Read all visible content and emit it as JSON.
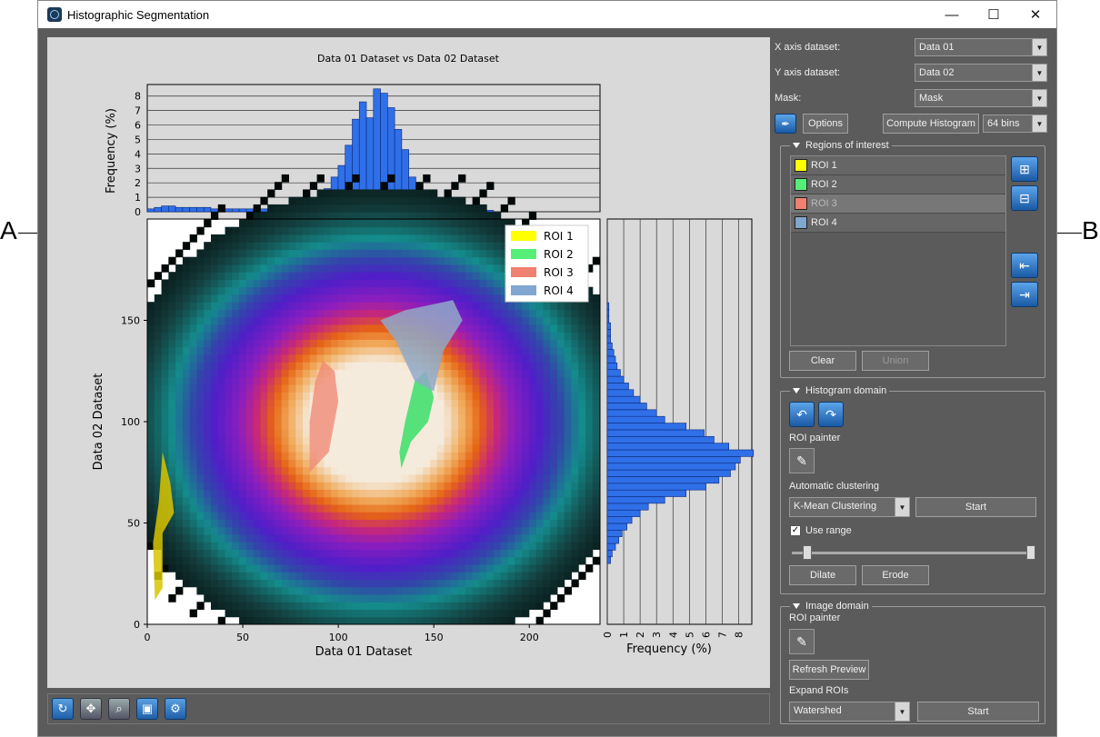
{
  "callouts": {
    "left": "A",
    "right": "B"
  },
  "window": {
    "title": "Histographic Segmentation",
    "minimize": "—",
    "maximize": "☐",
    "close": "✕"
  },
  "plot": {
    "title": "Data 01 Dataset vs Data 02 Dataset",
    "top_hist": {
      "ylabel": "Frequency (%)",
      "yticks": [
        "0",
        "1",
        "2",
        "3",
        "4",
        "5",
        "6",
        "7",
        "8"
      ]
    },
    "right_hist": {
      "xlabel": "Frequency (%)",
      "xticks": [
        "0",
        "1",
        "2",
        "3",
        "4",
        "5",
        "6",
        "7",
        "8"
      ]
    },
    "main": {
      "xlabel": "Data 01 Dataset",
      "ylabel": "Data 02 Dataset",
      "xticks": [
        "0",
        "50",
        "100",
        "150",
        "200"
      ],
      "yticks": [
        "0",
        "50",
        "100",
        "150"
      ]
    },
    "legend": [
      {
        "name": "ROI 1",
        "color": "#ffff00"
      },
      {
        "name": "ROI 2",
        "color": "#55ee77"
      },
      {
        "name": "ROI 3",
        "color": "#f08070"
      },
      {
        "name": "ROI 4",
        "color": "#7fa7cf"
      }
    ]
  },
  "chart_data": [
    {
      "type": "bar",
      "title": "",
      "xlabel": "",
      "ylabel": "Frequency (%)",
      "ylim": [
        0,
        8.8
      ],
      "xlim": [
        0,
        237
      ],
      "bin_width": 3.7,
      "values": [
        0.2,
        0.3,
        0.4,
        0.4,
        0.3,
        0.3,
        0.3,
        0.3,
        0.3,
        0.2,
        0.2,
        0.2,
        0.2,
        0.2,
        0.2,
        0.2,
        0.2,
        0.2,
        0.3,
        0.3,
        0.2,
        0.3,
        0.3,
        0.5,
        0.9,
        1.6,
        2.4,
        3.2,
        4.6,
        6.4,
        7.6,
        6.5,
        8.5,
        8.2,
        7.2,
        5.7,
        4.3,
        2.4,
        1.4,
        0.7,
        0.4,
        0.3,
        0.2,
        0.2,
        0.2,
        0.1,
        0.1,
        0.1,
        0.1,
        0.0,
        0.0,
        0.0,
        0.0,
        0.0,
        0.0,
        0.0,
        0.0,
        0.0,
        0.0,
        0.0,
        0.0,
        0.0,
        0.0,
        0.0
      ]
    },
    {
      "type": "bar",
      "orientation": "horizontal",
      "title": "",
      "xlabel": "Frequency (%)",
      "ylabel": "",
      "xlim": [
        0,
        8.8
      ],
      "ylim": [
        0,
        200
      ],
      "y_start": 30,
      "bin_width": 3.3,
      "values": [
        0.2,
        0.3,
        0.5,
        0.7,
        0.9,
        1.2,
        1.5,
        2.0,
        2.5,
        3.5,
        4.8,
        6.0,
        6.8,
        7.5,
        7.8,
        8.1,
        8.9,
        7.4,
        6.5,
        5.9,
        4.8,
        3.5,
        3.0,
        2.4,
        2.0,
        1.6,
        1.3,
        1.0,
        0.8,
        0.6,
        0.5,
        0.4,
        0.3,
        0.2,
        0.2,
        0.2,
        0.1,
        0.1,
        0.1
      ]
    }
  ],
  "panel": {
    "x_axis_label": "X axis dataset:",
    "x_axis_value": "Data 01",
    "y_axis_label": "Y axis dataset:",
    "y_axis_value": "Data 02",
    "mask_label": "Mask:",
    "mask_value": "Mask",
    "options_label": "Options",
    "compute_label": "Compute Histogram",
    "bins_value": "64 bins",
    "roi_group": "Regions of interest",
    "rois": [
      {
        "name": "ROI 1",
        "color": "#ffff00"
      },
      {
        "name": "ROI 2",
        "color": "#55ee77"
      },
      {
        "name": "ROI 3",
        "color": "#f08070"
      },
      {
        "name": "ROI 4",
        "color": "#7fa7cf"
      }
    ],
    "clear_label": "Clear",
    "union_label": "Union",
    "hist_domain_group": "Histogram domain",
    "roi_painter_label": "ROI painter",
    "auto_cluster_label": "Automatic clustering",
    "cluster_method": "K-Mean Clustering",
    "start_label": "Start",
    "use_range_label": "Use range",
    "dilate_label": "Dilate",
    "erode_label": "Erode",
    "image_domain_group": "Image domain",
    "image_roi_painter_label": "ROI painter",
    "refresh_label": "Refresh Preview",
    "expand_label": "Expand ROIs",
    "expand_method": "Watershed",
    "start2_label": "Start"
  }
}
